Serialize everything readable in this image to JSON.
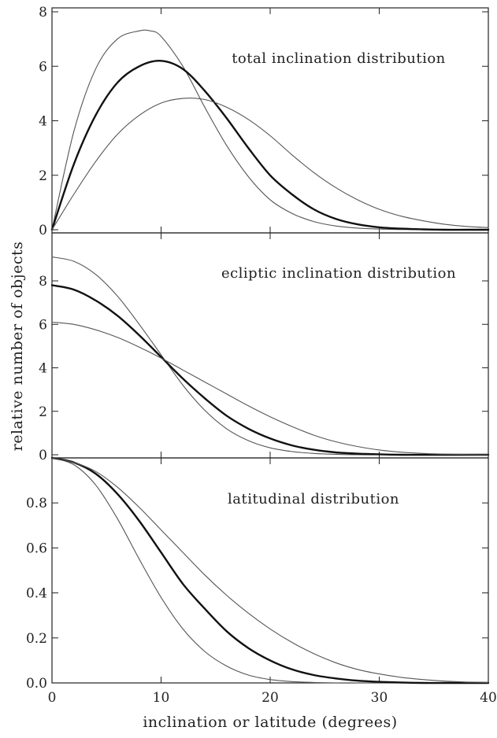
{
  "chart_data": [
    {
      "type": "line",
      "title": "total inclination distribution",
      "xlim": [
        0,
        40
      ],
      "ylim": [
        0,
        8
      ],
      "yticks": [
        "0",
        "2",
        "4",
        "6",
        "8"
      ],
      "grid": false,
      "series": [
        {
          "style": "thin",
          "x": [
            0,
            2,
            4,
            6,
            8,
            9,
            10,
            12,
            14,
            16,
            18,
            20,
            22,
            24,
            26,
            28,
            30,
            32,
            34,
            36,
            38,
            40
          ],
          "y": [
            0,
            3.6,
            5.9,
            7.0,
            7.3,
            7.3,
            7.1,
            6.0,
            4.5,
            3.1,
            1.95,
            1.1,
            0.6,
            0.3,
            0.14,
            0.06,
            0.025,
            0.01,
            0,
            0,
            0,
            0
          ]
        },
        {
          "style": "thick",
          "x": [
            0,
            2,
            4,
            6,
            8,
            10,
            12,
            14,
            16,
            18,
            20,
            22,
            24,
            26,
            28,
            30,
            32,
            34,
            36,
            38,
            40
          ],
          "y": [
            0,
            2.4,
            4.2,
            5.4,
            6.0,
            6.2,
            5.9,
            5.1,
            4.1,
            3.0,
            2.0,
            1.3,
            0.75,
            0.4,
            0.2,
            0.09,
            0.04,
            0.015,
            0,
            0,
            0
          ]
        },
        {
          "style": "thin",
          "x": [
            0,
            2,
            4,
            6,
            8,
            10,
            12,
            14,
            16,
            18,
            20,
            22,
            24,
            26,
            28,
            30,
            32,
            34,
            36,
            38,
            40
          ],
          "y": [
            0,
            1.3,
            2.5,
            3.5,
            4.2,
            4.65,
            4.82,
            4.78,
            4.5,
            4.05,
            3.45,
            2.75,
            2.1,
            1.55,
            1.1,
            0.75,
            0.5,
            0.33,
            0.2,
            0.12,
            0.08
          ]
        }
      ]
    },
    {
      "type": "line",
      "title": "ecliptic inclination distribution",
      "xlim": [
        0,
        40
      ],
      "ylim": [
        0,
        8
      ],
      "yticks": [
        "0",
        "2",
        "4",
        "6",
        "8"
      ],
      "grid": false,
      "series": [
        {
          "style": "thin",
          "x": [
            0,
            2,
            4,
            6,
            8,
            10,
            12,
            14,
            16,
            18,
            20,
            22,
            24,
            26,
            28,
            30,
            32,
            34,
            36,
            38,
            40
          ],
          "y": [
            9.1,
            8.9,
            8.3,
            7.3,
            6.0,
            4.6,
            3.2,
            2.05,
            1.2,
            0.65,
            0.32,
            0.15,
            0.06,
            0.02,
            0,
            0,
            0,
            0,
            0,
            0,
            0
          ]
        },
        {
          "style": "thick",
          "x": [
            0,
            2,
            4,
            6,
            8,
            10,
            12,
            14,
            16,
            18,
            20,
            22,
            24,
            26,
            28,
            30,
            32,
            34,
            36,
            38,
            40
          ],
          "y": [
            7.8,
            7.6,
            7.1,
            6.4,
            5.5,
            4.5,
            3.5,
            2.6,
            1.8,
            1.2,
            0.75,
            0.43,
            0.23,
            0.11,
            0.05,
            0.02,
            0,
            0,
            0,
            0,
            0
          ]
        },
        {
          "style": "thin",
          "x": [
            0,
            2,
            4,
            6,
            8,
            10,
            12,
            14,
            16,
            18,
            20,
            22,
            24,
            26,
            28,
            30,
            32,
            34,
            36,
            38,
            40
          ],
          "y": [
            6.1,
            6.0,
            5.75,
            5.4,
            4.95,
            4.45,
            3.9,
            3.35,
            2.8,
            2.25,
            1.75,
            1.3,
            0.9,
            0.6,
            0.38,
            0.22,
            0.12,
            0.06,
            0.03,
            0.01,
            0
          ]
        }
      ]
    },
    {
      "type": "line",
      "title": "latitudinal distribution",
      "xlim": [
        0,
        40
      ],
      "ylim": [
        0,
        1.0
      ],
      "yticks": [
        "0.0",
        "0.2",
        "0.4",
        "0.6",
        "0.8"
      ],
      "grid": false,
      "series": [
        {
          "style": "thin",
          "x": [
            0,
            2,
            4,
            6,
            8,
            10,
            12,
            14,
            16,
            18,
            20,
            22,
            24,
            26,
            28,
            30,
            32,
            34,
            36,
            38,
            40
          ],
          "y": [
            1.0,
            0.97,
            0.88,
            0.73,
            0.55,
            0.38,
            0.24,
            0.14,
            0.075,
            0.035,
            0.015,
            0.006,
            0.002,
            0,
            0,
            0,
            0,
            0,
            0,
            0,
            0
          ]
        },
        {
          "style": "thick",
          "x": [
            0,
            2,
            4,
            6,
            8,
            10,
            12,
            14,
            16,
            18,
            20,
            22,
            24,
            26,
            28,
            30,
            32,
            34,
            36,
            38,
            40
          ],
          "y": [
            1.0,
            0.98,
            0.93,
            0.84,
            0.72,
            0.58,
            0.44,
            0.33,
            0.23,
            0.155,
            0.1,
            0.06,
            0.035,
            0.02,
            0.01,
            0.005,
            0.002,
            0,
            0,
            0,
            0
          ]
        },
        {
          "style": "thin",
          "x": [
            0,
            2,
            4,
            6,
            8,
            10,
            12,
            14,
            16,
            18,
            20,
            22,
            24,
            26,
            28,
            30,
            32,
            34,
            36,
            38,
            40
          ],
          "y": [
            1.0,
            0.98,
            0.94,
            0.87,
            0.78,
            0.68,
            0.58,
            0.48,
            0.39,
            0.31,
            0.24,
            0.18,
            0.13,
            0.09,
            0.06,
            0.04,
            0.025,
            0.015,
            0.008,
            0.004,
            0.002
          ]
        }
      ]
    }
  ],
  "xaxis": {
    "label": "inclination or latitude (degrees)",
    "ticks": [
      0,
      10,
      20,
      30,
      40
    ],
    "ticklabels": [
      "0",
      "10",
      "20",
      "30",
      "40"
    ]
  },
  "yaxis": {
    "label": "relative number of objects"
  },
  "colors": {
    "thin": "#555555",
    "thick": "#111111",
    "axis": "#222222"
  }
}
